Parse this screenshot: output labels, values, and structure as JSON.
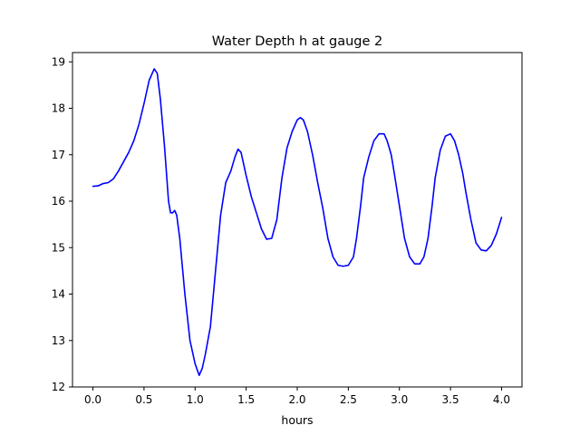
{
  "chart_data": {
    "type": "line",
    "title": "Water Depth h at gauge 2",
    "xlabel": "hours",
    "ylabel": "",
    "xlim": [
      -0.2,
      4.2
    ],
    "ylim": [
      12.0,
      19.2
    ],
    "xticks": [
      0.0,
      0.5,
      1.0,
      1.5,
      2.0,
      2.5,
      3.0,
      3.5,
      4.0
    ],
    "xtick_labels": [
      "0.0",
      "0.5",
      "1.0",
      "1.5",
      "2.0",
      "2.5",
      "3.0",
      "3.5",
      "4.0"
    ],
    "yticks": [
      12,
      13,
      14,
      15,
      16,
      17,
      18,
      19
    ],
    "ytick_labels": [
      "12",
      "13",
      "14",
      "15",
      "16",
      "17",
      "18",
      "19"
    ],
    "grid": false,
    "colors": {
      "line": "#0000ff",
      "axes": "#000000",
      "background": "#ffffff"
    },
    "series": [
      {
        "x": [
          0.0,
          0.05,
          0.1,
          0.15,
          0.2,
          0.25,
          0.3,
          0.35,
          0.4,
          0.45,
          0.5,
          0.55,
          0.6,
          0.63,
          0.66,
          0.7,
          0.74,
          0.76,
          0.78,
          0.8,
          0.82,
          0.85,
          0.9,
          0.95,
          1.0,
          1.04,
          1.07,
          1.1,
          1.15,
          1.2,
          1.25,
          1.3,
          1.35,
          1.39,
          1.42,
          1.45,
          1.5,
          1.55,
          1.6,
          1.65,
          1.7,
          1.75,
          1.8,
          1.85,
          1.9,
          1.95,
          2.0,
          2.03,
          2.06,
          2.1,
          2.15,
          2.2,
          2.25,
          2.3,
          2.35,
          2.4,
          2.45,
          2.5,
          2.55,
          2.58,
          2.62,
          2.65,
          2.7,
          2.75,
          2.8,
          2.85,
          2.88,
          2.92,
          2.95,
          3.0,
          3.05,
          3.1,
          3.15,
          3.2,
          3.24,
          3.28,
          3.32,
          3.35,
          3.4,
          3.45,
          3.5,
          3.54,
          3.58,
          3.62,
          3.65,
          3.7,
          3.75,
          3.8,
          3.85,
          3.9,
          3.95,
          4.0
        ],
        "values": [
          16.32,
          16.33,
          16.38,
          16.4,
          16.48,
          16.65,
          16.85,
          17.05,
          17.3,
          17.65,
          18.1,
          18.6,
          18.85,
          18.75,
          18.2,
          17.2,
          16.0,
          15.75,
          15.75,
          15.8,
          15.7,
          15.2,
          14.0,
          13.0,
          12.5,
          12.25,
          12.4,
          12.7,
          13.3,
          14.5,
          15.7,
          16.4,
          16.65,
          16.95,
          17.12,
          17.05,
          16.55,
          16.1,
          15.75,
          15.4,
          15.18,
          15.2,
          15.6,
          16.5,
          17.15,
          17.5,
          17.75,
          17.8,
          17.75,
          17.5,
          17.0,
          16.4,
          15.85,
          15.2,
          14.8,
          14.62,
          14.6,
          14.62,
          14.8,
          15.2,
          15.9,
          16.5,
          16.95,
          17.3,
          17.45,
          17.45,
          17.3,
          17.0,
          16.6,
          15.9,
          15.2,
          14.8,
          14.65,
          14.65,
          14.8,
          15.2,
          15.9,
          16.5,
          17.1,
          17.4,
          17.45,
          17.3,
          17.0,
          16.6,
          16.2,
          15.6,
          15.1,
          14.95,
          14.93,
          15.05,
          15.3,
          15.65
        ]
      }
    ]
  }
}
